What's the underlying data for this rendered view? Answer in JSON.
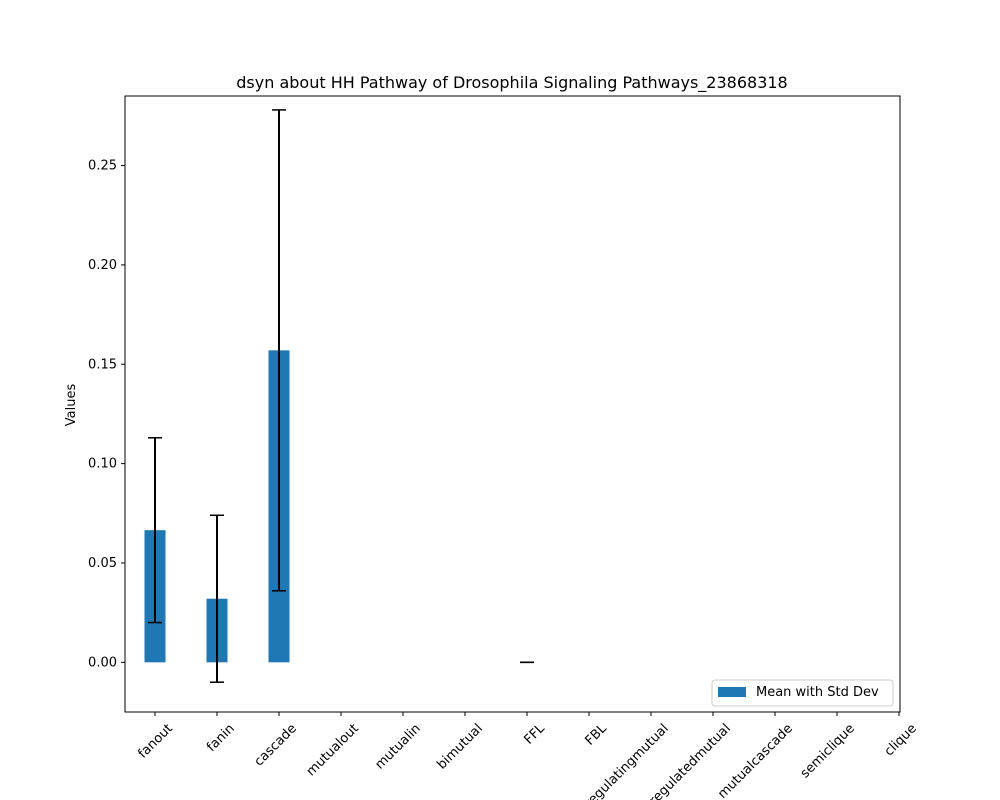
{
  "chart_data": {
    "type": "bar",
    "title": "dsyn about HH Pathway of Drosophila Signaling Pathways_23868318",
    "xlabel": "",
    "ylabel": "Values",
    "categories": [
      "fanout",
      "fanin",
      "cascade",
      "mutualout",
      "mutualin",
      "bimutual",
      "FFL",
      "FBL",
      "regulatingmutual",
      "regulatedmutual",
      "mutualcascade",
      "semiclique",
      "clique"
    ],
    "series": [
      {
        "name": "Mean with Std Dev",
        "values": [
          0.0665,
          0.032,
          0.157,
          0,
          0,
          0,
          0,
          0,
          0,
          0,
          0,
          0,
          0
        ],
        "std": [
          0.0465,
          0.042,
          0.121,
          null,
          null,
          null,
          0,
          null,
          null,
          null,
          null,
          null,
          null
        ]
      }
    ],
    "ylim": [
      -0.025,
      0.285
    ],
    "yticks": [
      0.0,
      0.05,
      0.1,
      0.15,
      0.2,
      0.25
    ],
    "ytick_labels": [
      "0.00",
      "0.05",
      "0.10",
      "0.15",
      "0.20",
      "0.25"
    ],
    "grid": false,
    "legend_position": "lower-right",
    "colors": {
      "bar": "#1f77b4",
      "errorbar": "#000000",
      "axes": "#000000"
    }
  }
}
